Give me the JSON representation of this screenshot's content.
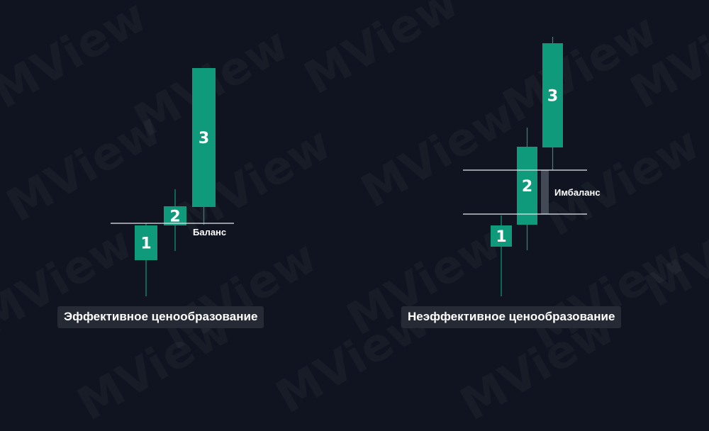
{
  "watermark": "MView",
  "colors": {
    "background": "#0f1420",
    "candle": "#0f9a7c",
    "wick": "#0f9a7c",
    "level_line": "#e6e8ee",
    "imbalance_bar": "#444a55",
    "caption_bg": "#252a35",
    "text": "#ffffff"
  },
  "panels": [
    {
      "caption": "Эффективное ценообразование",
      "candles": [
        {
          "label": "1"
        },
        {
          "label": "2"
        },
        {
          "label": "3"
        }
      ],
      "zone_label": "Баланс"
    },
    {
      "caption": "Неэффективное ценообразование",
      "candles": [
        {
          "label": "1"
        },
        {
          "label": "2"
        },
        {
          "label": "3"
        }
      ],
      "zone_label": "Имбаланс"
    }
  ]
}
